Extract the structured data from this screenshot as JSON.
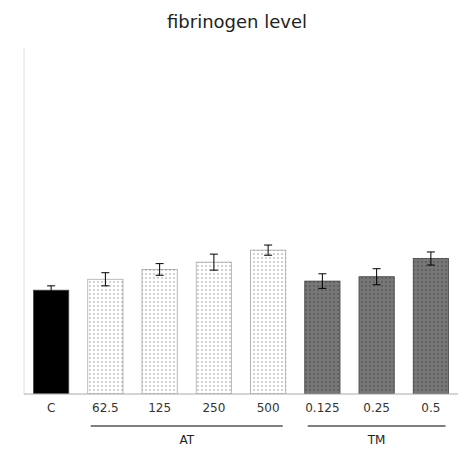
{
  "chart_data": {
    "type": "bar",
    "title": "fibrinogen level",
    "categories": [
      "C",
      "62.5",
      "125",
      "250",
      "500",
      "0.125",
      "0.25",
      "0.5"
    ],
    "values": [
      2.85,
      3.15,
      3.42,
      3.62,
      3.95,
      3.1,
      3.22,
      3.72
    ],
    "errors": [
      0.12,
      0.18,
      0.16,
      0.22,
      0.14,
      0.2,
      0.22,
      0.18
    ],
    "colors": [
      "#000000",
      "#ffffff",
      "#ffffff",
      "#ffffff",
      "#ffffff",
      "#777777",
      "#777777",
      "#777777"
    ],
    "ylim": [
      0,
      9.5
    ],
    "grid": false,
    "tick_labels": "x",
    "annotations": [
      {
        "text": "AT",
        "from": "62.5",
        "to": "500"
      },
      {
        "text": "TM",
        "from": "0.125",
        "to": "0.5"
      }
    ]
  }
}
